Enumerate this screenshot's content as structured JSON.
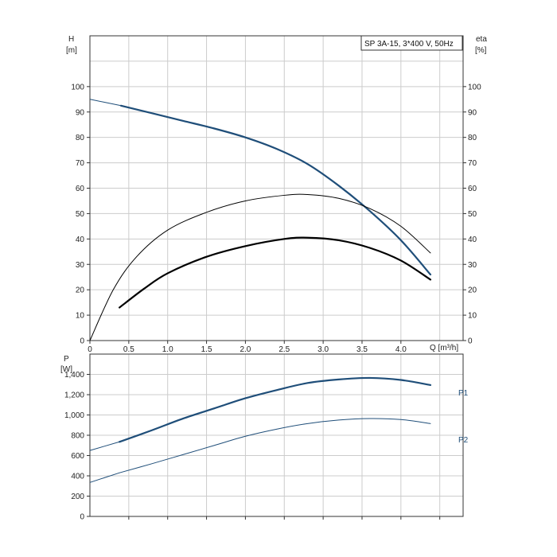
{
  "chart_data": [
    {
      "type": "line",
      "legend_text": "SP 3A-15, 3*400 V, 50Hz",
      "legend_position": "top-right",
      "grid": true,
      "xlabel": "Q [m³/h]",
      "x_ticks": [
        "0",
        "0.5",
        "1.0",
        "1.5",
        "2.0",
        "2.5",
        "3.0",
        "3.5",
        "4.0"
      ],
      "xlim": [
        0,
        4.8
      ],
      "ylabel_left": "H",
      "ylabel_left_unit": "[m]",
      "ylabel_right": "eta",
      "ylabel_right_unit": "[%]",
      "y_ticks": [
        "0",
        "10",
        "20",
        "30",
        "40",
        "50",
        "60",
        "70",
        "80",
        "90",
        "100"
      ],
      "ylim": [
        0,
        120
      ],
      "series": [
        {
          "id": "head",
          "color": "#1f4e79",
          "style": "thick",
          "points": [
            [
              0,
              95
            ],
            [
              0.4,
              92.5
            ],
            [
              0.8,
              89.5
            ],
            [
              1.2,
              86.5
            ],
            [
              1.6,
              83.5
            ],
            [
              2.0,
              80
            ],
            [
              2.4,
              75.5
            ],
            [
              2.8,
              69.5
            ],
            [
              3.2,
              61
            ],
            [
              3.6,
              51
            ],
            [
              4.0,
              39.5
            ],
            [
              4.38,
              26
            ]
          ]
        },
        {
          "id": "eta-pump",
          "color": "#000000",
          "style": "thin",
          "points": [
            [
              0,
              0
            ],
            [
              0.3,
              20
            ],
            [
              0.6,
              33
            ],
            [
              1.0,
              43.5
            ],
            [
              1.5,
              50.5
            ],
            [
              2.0,
              55
            ],
            [
              2.5,
              57.2
            ],
            [
              2.8,
              57.5
            ],
            [
              3.2,
              56
            ],
            [
              3.6,
              52
            ],
            [
              4.0,
              45
            ],
            [
              4.38,
              34.5
            ]
          ]
        },
        {
          "id": "eta-total",
          "color": "#000000",
          "style": "thick",
          "points": [
            [
              0.38,
              13
            ],
            [
              0.7,
              20.5
            ],
            [
              1.0,
              26.5
            ],
            [
              1.5,
              33
            ],
            [
              2.0,
              37.2
            ],
            [
              2.5,
              40
            ],
            [
              2.8,
              40.5
            ],
            [
              3.2,
              39.5
            ],
            [
              3.6,
              36.5
            ],
            [
              4.0,
              31.5
            ],
            [
              4.38,
              24
            ]
          ]
        }
      ]
    },
    {
      "type": "line",
      "grid": true,
      "xlim": [
        0,
        4.8
      ],
      "ylabel": "P",
      "ylabel_unit": "[W]",
      "y_ticks": [
        "0",
        "200",
        "400",
        "600",
        "800",
        "1,000",
        "1,200",
        "1,400"
      ],
      "ylim": [
        0,
        1600
      ],
      "series": [
        {
          "id": "P1",
          "name": "P1",
          "color": "#1f4e79",
          "style": "thick",
          "points": [
            [
              0.38,
              735
            ],
            [
              0.8,
              850
            ],
            [
              1.2,
              965
            ],
            [
              1.6,
              1065
            ],
            [
              2.0,
              1165
            ],
            [
              2.4,
              1245
            ],
            [
              2.8,
              1315
            ],
            [
              3.2,
              1350
            ],
            [
              3.6,
              1365
            ],
            [
              4.0,
              1345
            ],
            [
              4.38,
              1295
            ]
          ]
        },
        {
          "id": "P2",
          "name": "P2",
          "color": "#1f4e79",
          "style": "thin",
          "points": [
            [
              0.38,
              430
            ],
            [
              0.8,
              520
            ],
            [
              1.2,
              610
            ],
            [
              1.6,
              700
            ],
            [
              2.0,
              790
            ],
            [
              2.4,
              860
            ],
            [
              2.8,
              915
            ],
            [
              3.2,
              950
            ],
            [
              3.6,
              965
            ],
            [
              4.0,
              955
            ],
            [
              4.38,
              915
            ]
          ]
        }
      ],
      "extension_segments": [
        {
          "series": "P1",
          "points": [
            [
              0.0,
              650
            ],
            [
              0.38,
              735
            ]
          ]
        },
        {
          "series": "P2",
          "points": [
            [
              0.0,
              335
            ],
            [
              0.38,
              430
            ]
          ]
        }
      ]
    }
  ]
}
